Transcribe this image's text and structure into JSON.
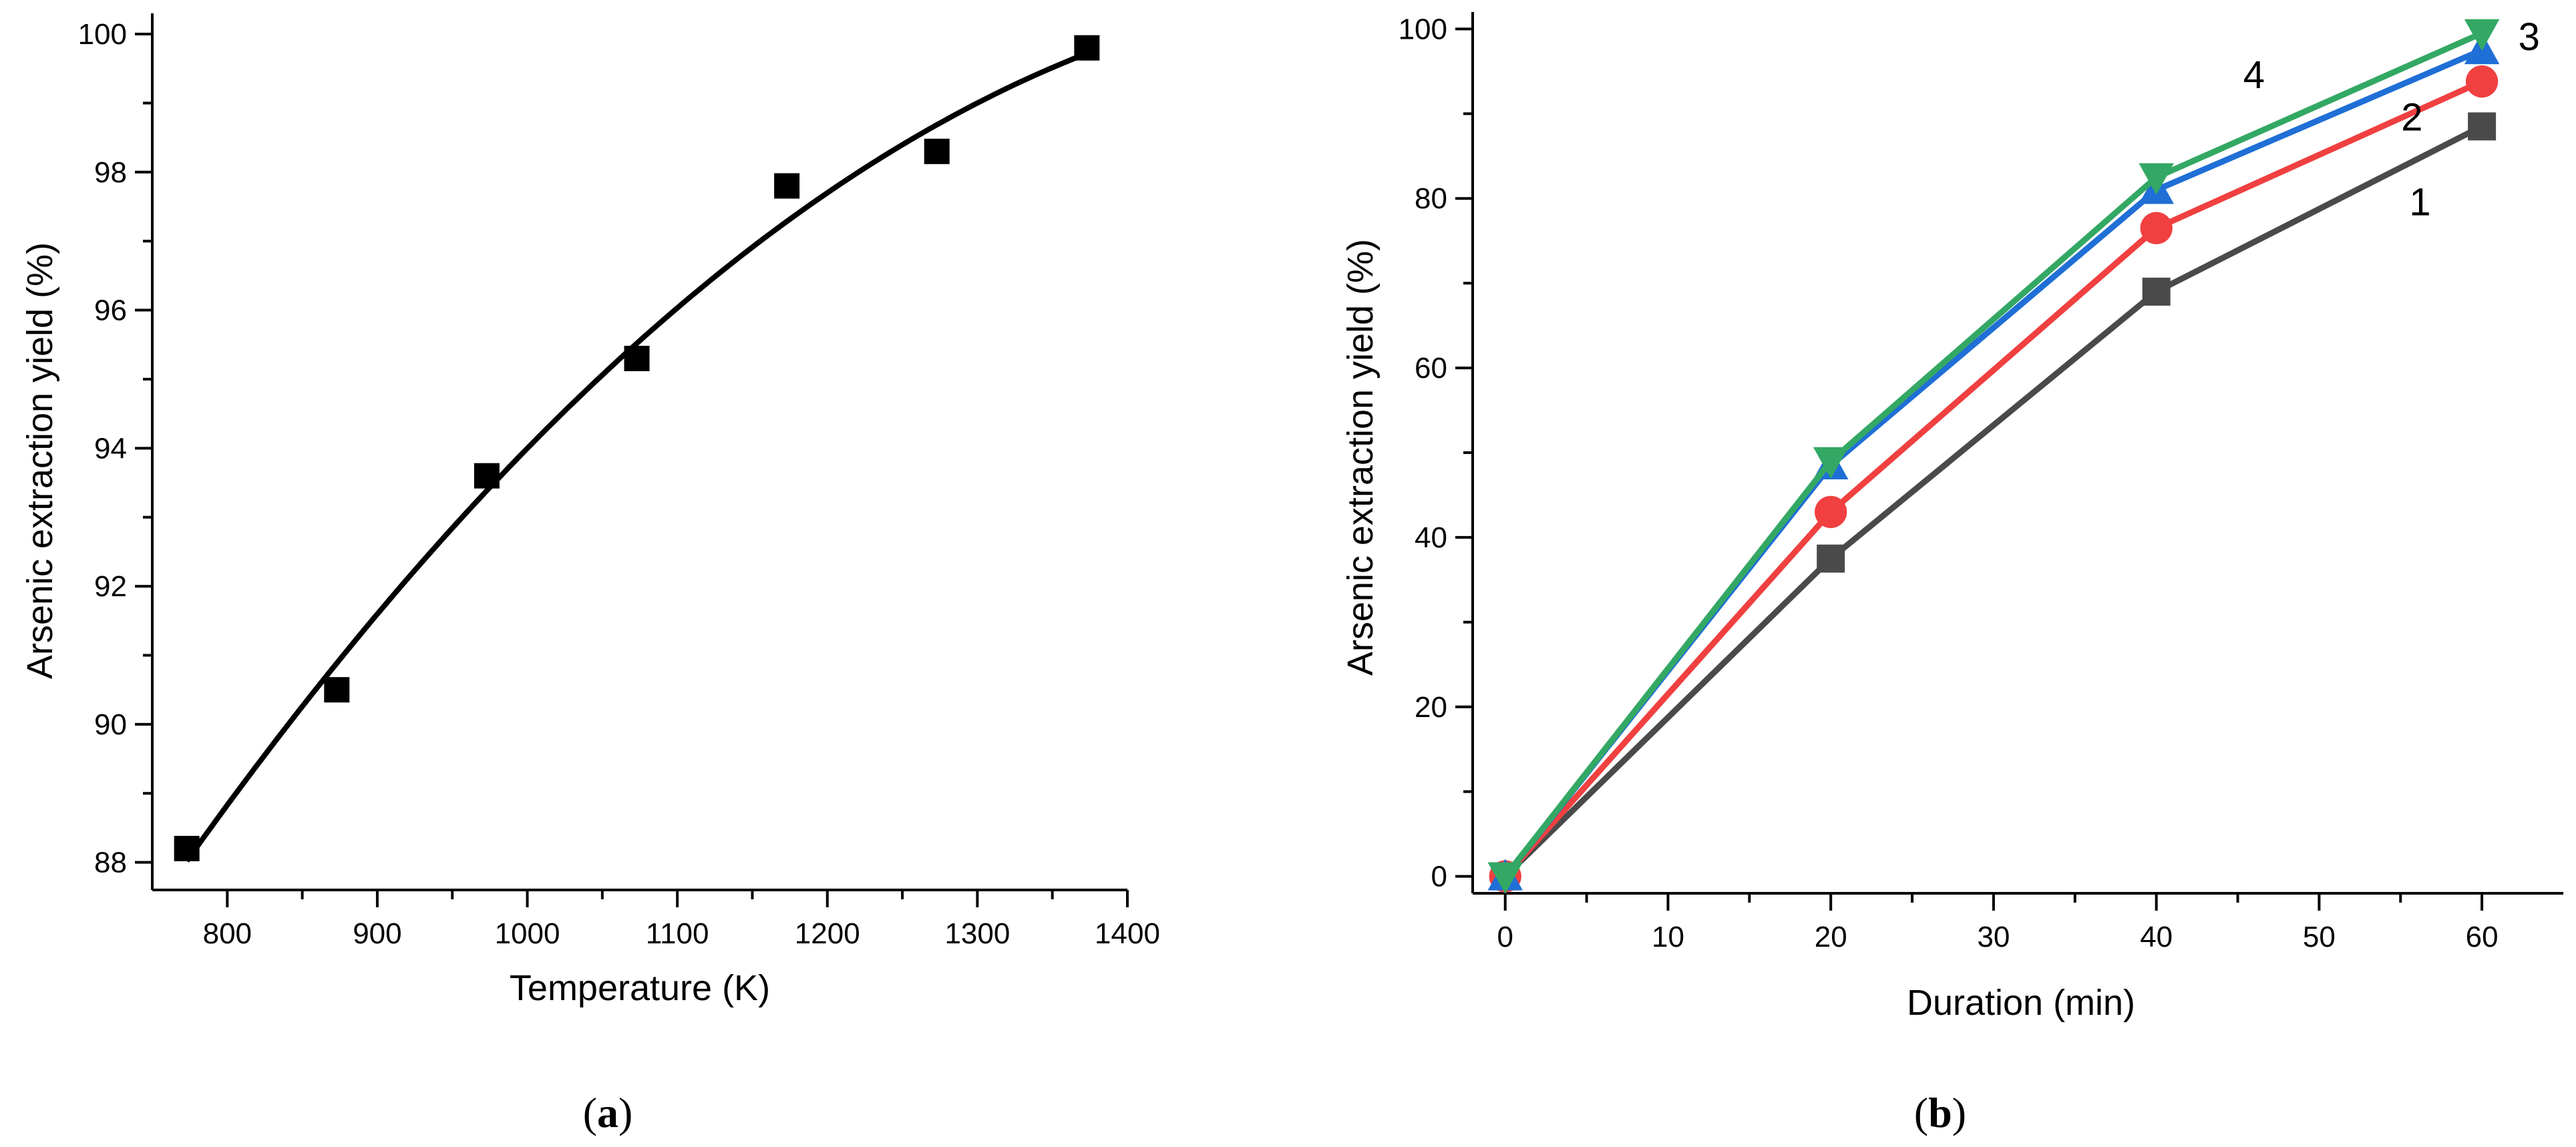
{
  "chart_data": [
    {
      "type": "scatter",
      "panel_label": "a",
      "xlabel": "Temperature (K)",
      "ylabel": "Arsenic extraction yield (%)",
      "xlim": [
        750,
        1400
      ],
      "ylim": [
        87.6,
        100.3
      ],
      "xticks": [
        800,
        900,
        1000,
        1100,
        1200,
        1300,
        1400
      ],
      "yticks": [
        88,
        90,
        92,
        94,
        96,
        98,
        100
      ],
      "x": [
        773,
        873,
        973,
        1073,
        1173,
        1273,
        1373
      ],
      "y": [
        88.2,
        90.5,
        93.6,
        95.3,
        97.8,
        98.3,
        99.8
      ],
      "fit": {
        "type": "quadratic",
        "x_range": [
          773,
          1373
        ]
      },
      "marker": "square",
      "color": "#000000"
    },
    {
      "type": "line",
      "panel_label": "b",
      "xlabel": "Duration (min)",
      "ylabel": "Arsenic extraction yield (%)",
      "xlim": [
        -2,
        65
      ],
      "ylim": [
        -2,
        102
      ],
      "xticks": [
        0,
        10,
        20,
        30,
        40,
        50,
        60
      ],
      "yticks": [
        0,
        20,
        40,
        60,
        80,
        100
      ],
      "x": [
        0,
        20,
        40,
        60
      ],
      "series": [
        {
          "name": "1",
          "color": "#4a4a4a",
          "marker": "square",
          "values": [
            0,
            37.5,
            69,
            88.5
          ]
        },
        {
          "name": "2",
          "color": "#f04040",
          "marker": "circle",
          "values": [
            0,
            43,
            76.5,
            93.8
          ]
        },
        {
          "name": "3",
          "color": "#1f6fd6",
          "marker": "triangle-up",
          "values": [
            0,
            48.5,
            81,
            97.5
          ]
        },
        {
          "name": "4",
          "color": "#33a864",
          "marker": "triangle-down",
          "values": [
            0,
            49,
            82.5,
            99.5
          ]
        }
      ],
      "annotations": [
        {
          "text": "1",
          "x": 56.2,
          "y": 78
        },
        {
          "text": "2",
          "x": 55.7,
          "y": 88
        },
        {
          "text": "3",
          "x": 62.9,
          "y": 97.5
        },
        {
          "text": "4",
          "x": 46,
          "y": 93
        }
      ]
    }
  ]
}
